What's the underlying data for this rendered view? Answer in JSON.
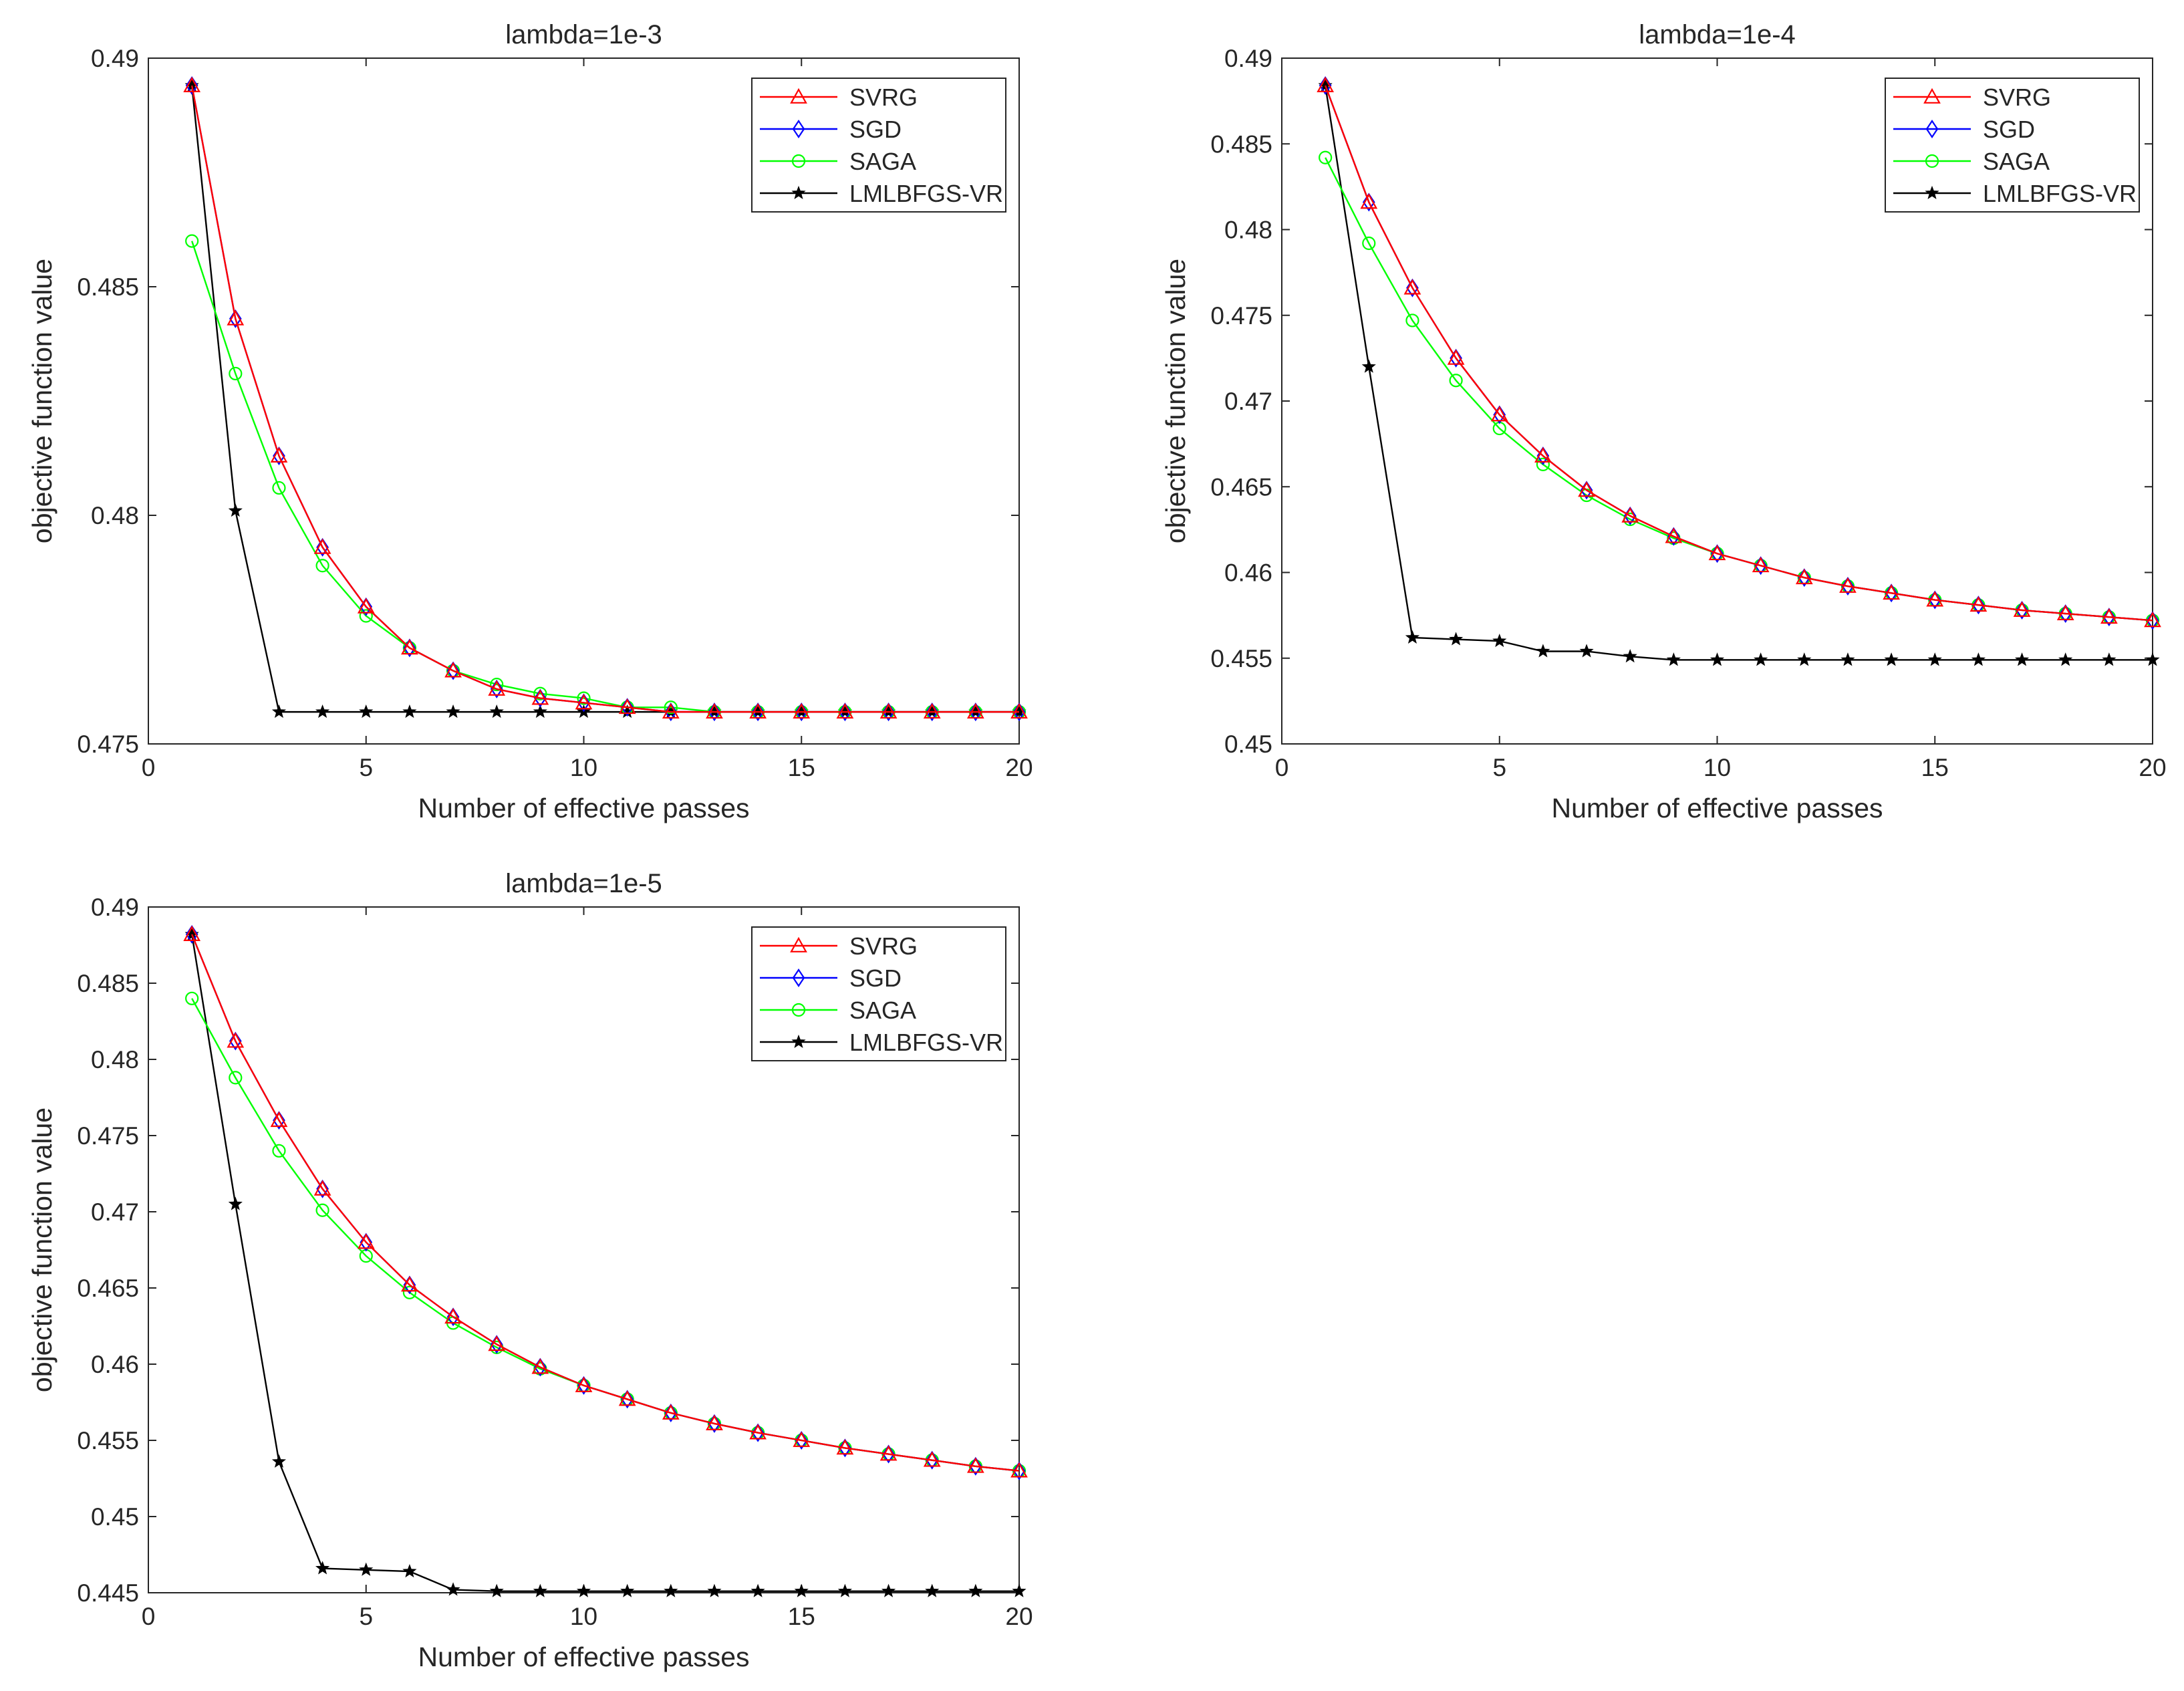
{
  "chart_data": [
    {
      "type": "line",
      "title": "lambda=1e-3",
      "xlabel": "Number of effective passes",
      "ylabel": "objective function value",
      "xlim": [
        0,
        20
      ],
      "ylim": [
        0.475,
        0.49
      ],
      "x_ticks": [
        0,
        5,
        10,
        15,
        20
      ],
      "x_tick_labels": [
        "0",
        "5",
        "10",
        "15",
        "20"
      ],
      "y_ticks": [
        0.475,
        0.48,
        0.485,
        0.49
      ],
      "y_tick_labels": [
        "0.475",
        "0.48",
        "0.485",
        "0.49"
      ],
      "legend_position": "top-right",
      "x": [
        1,
        2,
        3,
        4,
        5,
        6,
        7,
        8,
        9,
        10,
        11,
        12,
        13,
        14,
        15,
        16,
        17,
        18,
        19,
        20
      ],
      "series": [
        {
          "name": "SVRG",
          "color": "#ff0000",
          "marker": "triangle",
          "values": [
            0.4894,
            0.4843,
            0.4813,
            0.4793,
            0.478,
            0.4771,
            0.4766,
            0.4762,
            0.476,
            0.4759,
            0.4758,
            0.4757,
            0.4757,
            0.4757,
            0.4757,
            0.4757,
            0.4757,
            0.4757,
            0.4757,
            0.4757
          ]
        },
        {
          "name": "SGD",
          "color": "#0000ff",
          "marker": "diamond",
          "values": [
            0.4894,
            0.4843,
            0.4813,
            0.4793,
            0.478,
            0.4771,
            0.4766,
            0.4762,
            0.476,
            0.4759,
            0.4758,
            0.4757,
            0.4757,
            0.4757,
            0.4757,
            0.4757,
            0.4757,
            0.4757,
            0.4757,
            0.4757
          ]
        },
        {
          "name": "SAGA",
          "color": "#00ff00",
          "marker": "circle",
          "values": [
            0.486,
            0.4831,
            0.4806,
            0.4789,
            0.4778,
            0.4771,
            0.4766,
            0.4763,
            0.4761,
            0.476,
            0.4758,
            0.4758,
            0.4757,
            0.4757,
            0.4757,
            0.4757,
            0.4757,
            0.4757,
            0.4757,
            0.4757
          ]
        },
        {
          "name": "LMLBFGS-VR",
          "color": "#000000",
          "marker": "star",
          "values": [
            0.4894,
            0.4801,
            0.4757,
            0.4757,
            0.4757,
            0.4757,
            0.4757,
            0.4757,
            0.4757,
            0.4757,
            0.4757,
            0.4757,
            0.4757,
            0.4757,
            0.4757,
            0.4757,
            0.4757,
            0.4757,
            0.4757,
            0.4757
          ]
        }
      ]
    },
    {
      "type": "line",
      "title": "lambda=1e-4",
      "xlabel": "Number of effective passes",
      "ylabel": "objective function value",
      "xlim": [
        0,
        20
      ],
      "ylim": [
        0.45,
        0.49
      ],
      "x_ticks": [
        0,
        5,
        10,
        15,
        20
      ],
      "x_tick_labels": [
        "0",
        "5",
        "10",
        "15",
        "20"
      ],
      "y_ticks": [
        0.45,
        0.455,
        0.46,
        0.465,
        0.47,
        0.475,
        0.48,
        0.485,
        0.49
      ],
      "y_tick_labels": [
        "0.45",
        "0.455",
        "0.46",
        "0.465",
        "0.47",
        "0.475",
        "0.48",
        "0.485",
        "0.49"
      ],
      "legend_position": "top-right",
      "x": [
        1,
        2,
        3,
        4,
        5,
        6,
        7,
        8,
        9,
        10,
        11,
        12,
        13,
        14,
        15,
        16,
        17,
        18,
        19,
        20
      ],
      "series": [
        {
          "name": "SVRG",
          "color": "#ff0000",
          "marker": "triangle",
          "values": [
            0.4884,
            0.4816,
            0.4766,
            0.4725,
            0.4692,
            0.4668,
            0.4648,
            0.4633,
            0.4621,
            0.4611,
            0.4604,
            0.4597,
            0.4592,
            0.4588,
            0.4584,
            0.4581,
            0.4578,
            0.4576,
            0.4574,
            0.4572
          ]
        },
        {
          "name": "SGD",
          "color": "#0000ff",
          "marker": "diamond",
          "values": [
            0.4884,
            0.4816,
            0.4766,
            0.4725,
            0.4692,
            0.4668,
            0.4648,
            0.4633,
            0.4621,
            0.4611,
            0.4604,
            0.4597,
            0.4592,
            0.4588,
            0.4584,
            0.4581,
            0.4578,
            0.4576,
            0.4574,
            0.4572
          ]
        },
        {
          "name": "SAGA",
          "color": "#00ff00",
          "marker": "circle",
          "values": [
            0.4842,
            0.4792,
            0.4747,
            0.4712,
            0.4684,
            0.4663,
            0.4645,
            0.4631,
            0.462,
            0.4611,
            0.4604,
            0.4597,
            0.4592,
            0.4588,
            0.4584,
            0.4581,
            0.4578,
            0.4576,
            0.4574,
            0.4572
          ]
        },
        {
          "name": "LMLBFGS-VR",
          "color": "#000000",
          "marker": "star",
          "values": [
            0.4884,
            0.472,
            0.4562,
            0.4561,
            0.456,
            0.4554,
            0.4554,
            0.4551,
            0.4549,
            0.4549,
            0.4549,
            0.4549,
            0.4549,
            0.4549,
            0.4549,
            0.4549,
            0.4549,
            0.4549,
            0.4549,
            0.4549
          ]
        }
      ]
    },
    {
      "type": "line",
      "title": "lambda=1e-5",
      "xlabel": "Number of effective passes",
      "ylabel": "objective function value",
      "xlim": [
        0,
        20
      ],
      "ylim": [
        0.445,
        0.49
      ],
      "x_ticks": [
        0,
        5,
        10,
        15,
        20
      ],
      "x_tick_labels": [
        "0",
        "5",
        "10",
        "15",
        "20"
      ],
      "y_ticks": [
        0.445,
        0.45,
        0.455,
        0.46,
        0.465,
        0.47,
        0.475,
        0.48,
        0.485,
        0.49
      ],
      "y_tick_labels": [
        "0.445",
        "0.45",
        "0.455",
        "0.46",
        "0.465",
        "0.47",
        "0.475",
        "0.48",
        "0.485",
        "0.49"
      ],
      "legend_position": "top-right",
      "x": [
        1,
        2,
        3,
        4,
        5,
        6,
        7,
        8,
        9,
        10,
        11,
        12,
        13,
        14,
        15,
        16,
        17,
        18,
        19,
        20
      ],
      "series": [
        {
          "name": "SVRG",
          "color": "#ff0000",
          "marker": "triangle",
          "values": [
            0.4882,
            0.4812,
            0.476,
            0.4715,
            0.468,
            0.4652,
            0.4631,
            0.4613,
            0.4598,
            0.4586,
            0.4577,
            0.4568,
            0.4561,
            0.4555,
            0.455,
            0.4545,
            0.4541,
            0.4537,
            0.4533,
            0.453
          ]
        },
        {
          "name": "SGD",
          "color": "#0000ff",
          "marker": "diamond",
          "values": [
            0.4882,
            0.4812,
            0.476,
            0.4715,
            0.468,
            0.4652,
            0.4631,
            0.4613,
            0.4598,
            0.4586,
            0.4577,
            0.4568,
            0.4561,
            0.4555,
            0.455,
            0.4545,
            0.4541,
            0.4537,
            0.4533,
            0.453
          ]
        },
        {
          "name": "SAGA",
          "color": "#00ff00",
          "marker": "circle",
          "values": [
            0.484,
            0.4788,
            0.474,
            0.4701,
            0.4671,
            0.4647,
            0.4627,
            0.4611,
            0.4597,
            0.4586,
            0.4577,
            0.4568,
            0.4561,
            0.4555,
            0.455,
            0.4545,
            0.4541,
            0.4537,
            0.4533,
            0.453
          ]
        },
        {
          "name": "LMLBFGS-VR",
          "color": "#000000",
          "marker": "star",
          "values": [
            0.4882,
            0.4705,
            0.4536,
            0.4466,
            0.4465,
            0.4464,
            0.4452,
            0.4451,
            0.4451,
            0.4451,
            0.4451,
            0.4451,
            0.4451,
            0.4451,
            0.4451,
            0.4451,
            0.4451,
            0.4451,
            0.4451,
            0.4451
          ]
        }
      ]
    }
  ]
}
